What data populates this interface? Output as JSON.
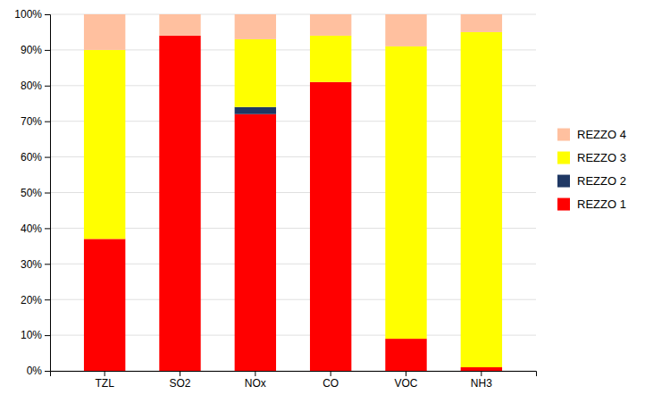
{
  "chart_data": {
    "type": "bar",
    "stacked": true,
    "categories": [
      "TZL",
      "SO2",
      "NOx",
      "CO",
      "VOC",
      "NH3"
    ],
    "series": [
      {
        "name": "REZZO 1",
        "color": "#FF0000",
        "values": [
          37,
          94,
          72,
          81,
          9,
          1
        ]
      },
      {
        "name": "REZZO 2",
        "color": "#1F3864",
        "values": [
          0,
          0,
          2,
          0,
          0,
          0
        ]
      },
      {
        "name": "REZZO 3",
        "color": "#FFFF00",
        "values": [
          53,
          0,
          19,
          13,
          82,
          94
        ]
      },
      {
        "name": "REZZO 4",
        "color": "#FFC09F",
        "values": [
          10,
          6,
          7,
          6,
          9,
          5
        ]
      }
    ],
    "ylim": [
      0,
      100
    ],
    "yticks": [
      {
        "value": 0,
        "label": "0%"
      },
      {
        "value": 10,
        "label": "10%"
      },
      {
        "value": 20,
        "label": "20%"
      },
      {
        "value": 30,
        "label": "30%"
      },
      {
        "value": 40,
        "label": "40%"
      },
      {
        "value": 50,
        "label": "50%"
      },
      {
        "value": 60,
        "label": "60%"
      },
      {
        "value": 70,
        "label": "70%"
      },
      {
        "value": 80,
        "label": "80%"
      },
      {
        "value": 90,
        "label": "90%"
      },
      {
        "value": 100,
        "label": "100%"
      }
    ],
    "grid": true,
    "legend": "right"
  }
}
